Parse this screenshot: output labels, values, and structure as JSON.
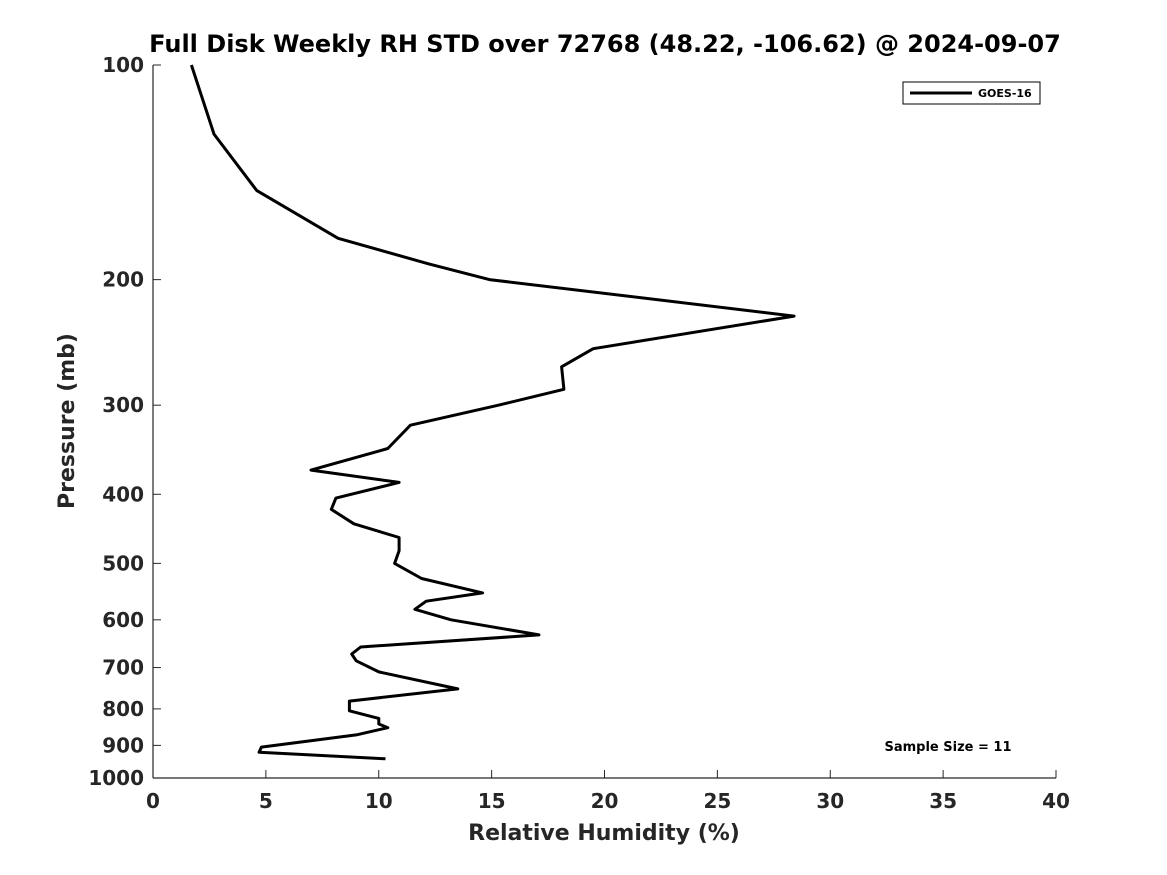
{
  "chart_data": {
    "type": "line",
    "title": "Full Disk Weekly RH STD over 72768 (48.22, -106.62) @ 2024-09-07",
    "xlabel": "Relative Humidity (%)",
    "ylabel": "Pressure (mb)",
    "xlim": [
      0,
      40
    ],
    "ylim": [
      100,
      1000
    ],
    "y_scale": "log",
    "y_reversed": true,
    "grid": false,
    "legend_position": "top-right",
    "x_ticks": [
      "0",
      "5",
      "10",
      "15",
      "20",
      "25",
      "30",
      "35",
      "40"
    ],
    "y_ticks": [
      "100",
      "200",
      "300",
      "400",
      "500",
      "600",
      "700",
      "800",
      "900",
      "1000"
    ],
    "series": [
      {
        "name": "GOES-16",
        "color": "#000000",
        "points": [
          [
            1.7,
            100
          ],
          [
            2.7,
            125
          ],
          [
            4.6,
            150
          ],
          [
            8.2,
            175
          ],
          [
            12.2,
            190
          ],
          [
            14.9,
            200
          ],
          [
            28.4,
            225
          ],
          [
            19.5,
            250
          ],
          [
            18.1,
            265
          ],
          [
            18.2,
            285
          ],
          [
            15.3,
            300
          ],
          [
            11.4,
            320
          ],
          [
            10.4,
            345
          ],
          [
            7.0,
            370
          ],
          [
            10.9,
            385
          ],
          [
            8.1,
            405
          ],
          [
            7.9,
            420
          ],
          [
            8.9,
            440
          ],
          [
            10.9,
            460
          ],
          [
            10.9,
            480
          ],
          [
            10.7,
            500
          ],
          [
            11.9,
            525
          ],
          [
            14.6,
            550
          ],
          [
            12.1,
            565
          ],
          [
            11.6,
            580
          ],
          [
            13.2,
            600
          ],
          [
            17.1,
            630
          ],
          [
            9.2,
            655
          ],
          [
            8.8,
            670
          ],
          [
            9.0,
            685
          ],
          [
            10.0,
            710
          ],
          [
            13.5,
            750
          ],
          [
            8.7,
            780
          ],
          [
            8.7,
            805
          ],
          [
            10.0,
            825
          ],
          [
            10.0,
            840
          ],
          [
            10.4,
            850
          ],
          [
            9.0,
            870
          ],
          [
            4.8,
            905
          ],
          [
            4.7,
            920
          ],
          [
            10.3,
            940
          ]
        ]
      }
    ],
    "annotation": "Sample Size = 11"
  }
}
